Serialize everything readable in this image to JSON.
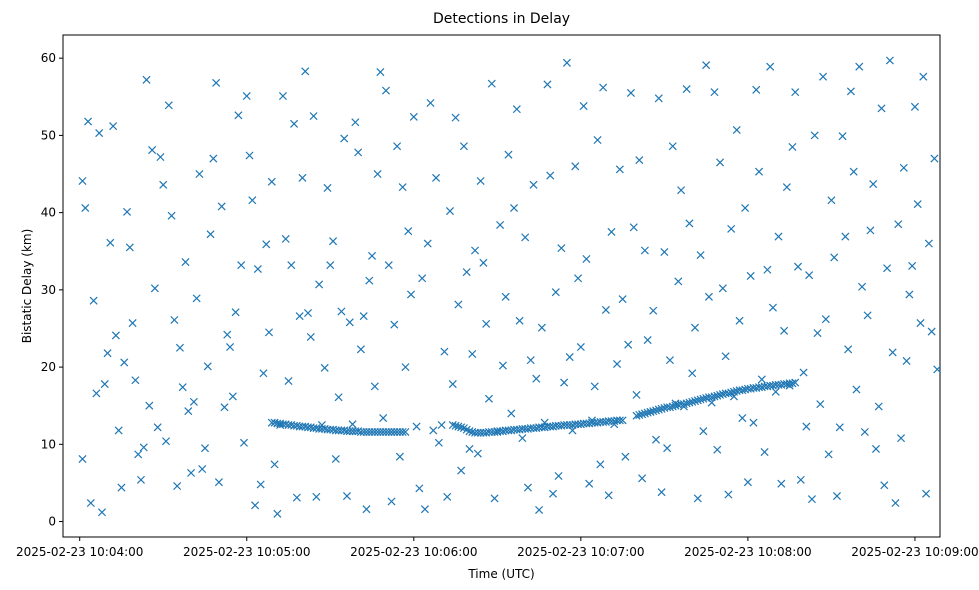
{
  "chart_data": {
    "type": "scatter",
    "title": "Detections in Delay",
    "xlabel": "Time (UTC)",
    "ylabel": "Bistatic Delay (km)",
    "x_type": "time",
    "xlim": [
      "2025-02-23 10:03:54",
      "2025-02-23 10:09:09"
    ],
    "ylim": [
      -2,
      63
    ],
    "marker": "x",
    "color": "#1f77b4",
    "grid": false,
    "xticks": [
      {
        "t": "2025-02-23 10:04:00",
        "label": "2025-02-23 10:04:00"
      },
      {
        "t": "2025-02-23 10:05:00",
        "label": "2025-02-23 10:05:00"
      },
      {
        "t": "2025-02-23 10:06:00",
        "label": "2025-02-23 10:06:00"
      },
      {
        "t": "2025-02-23 10:07:00",
        "label": "2025-02-23 10:07:00"
      },
      {
        "t": "2025-02-23 10:08:00",
        "label": "2025-02-23 10:08:00"
      },
      {
        "t": "2025-02-23 10:09:00",
        "label": "2025-02-23 10:09:00"
      }
    ],
    "yticks": [
      0,
      10,
      20,
      30,
      40,
      50,
      60
    ],
    "series": [
      {
        "x": [
          "10:04:01",
          "10:04:01",
          "10:04:02",
          "10:04:03",
          "10:04:04",
          "10:04:05",
          "10:04:06",
          "10:04:07",
          "10:04:08",
          "10:04:09",
          "10:04:10",
          "10:04:11",
          "10:04:12",
          "10:04:13",
          "10:04:14",
          "10:04:15",
          "10:04:16",
          "10:04:17",
          "10:04:18",
          "10:04:19",
          "10:04:20",
          "10:04:21",
          "10:04:22",
          "10:04:23",
          "10:04:24",
          "10:04:25",
          "10:04:26",
          "10:04:27",
          "10:04:28",
          "10:04:29",
          "10:04:30",
          "10:04:31",
          "10:04:32",
          "10:04:33",
          "10:04:34",
          "10:04:35",
          "10:04:36",
          "10:04:37",
          "10:04:38",
          "10:04:39",
          "10:04:40",
          "10:04:41",
          "10:04:42",
          "10:04:43",
          "10:04:44",
          "10:04:45",
          "10:04:46",
          "10:04:47",
          "10:04:48",
          "10:04:49",
          "10:04:50",
          "10:04:51",
          "10:04:52",
          "10:04:53",
          "10:04:54",
          "10:04:55",
          "10:04:56",
          "10:04:57",
          "10:04:58",
          "10:04:59",
          "10:05:00",
          "10:05:01",
          "10:05:02",
          "10:05:03",
          "10:05:04",
          "10:05:05",
          "10:05:06",
          "10:05:07",
          "10:05:08",
          "10:05:09",
          "10:05:10",
          "10:05:11",
          "10:05:12",
          "10:05:13",
          "10:05:14",
          "10:05:15",
          "10:05:16",
          "10:05:17",
          "10:05:18",
          "10:05:19",
          "10:05:20",
          "10:05:21",
          "10:05:22",
          "10:05:23",
          "10:05:24",
          "10:05:25",
          "10:05:26",
          "10:05:27",
          "10:05:28",
          "10:05:29",
          "10:05:30",
          "10:05:31",
          "10:05:32",
          "10:05:33",
          "10:05:34",
          "10:05:35",
          "10:05:36",
          "10:05:37",
          "10:05:38",
          "10:05:39",
          "10:05:40",
          "10:05:41",
          "10:05:42",
          "10:05:43",
          "10:05:44",
          "10:05:45",
          "10:05:46",
          "10:05:47",
          "10:05:48",
          "10:05:49",
          "10:05:50",
          "10:05:51",
          "10:05:52",
          "10:05:53",
          "10:05:54",
          "10:05:55",
          "10:05:56",
          "10:05:57",
          "10:05:58",
          "10:05:59",
          "10:06:00",
          "10:06:01",
          "10:06:02",
          "10:06:03",
          "10:06:04",
          "10:06:05",
          "10:06:06",
          "10:06:07",
          "10:06:08",
          "10:06:09",
          "10:06:10",
          "10:06:11",
          "10:06:12",
          "10:06:13",
          "10:06:14",
          "10:06:15",
          "10:06:16",
          "10:06:17",
          "10:06:18",
          "10:06:19",
          "10:06:20",
          "10:06:21",
          "10:06:22",
          "10:06:23",
          "10:06:24",
          "10:06:25",
          "10:06:26",
          "10:06:27",
          "10:06:28",
          "10:06:29",
          "10:06:30",
          "10:06:31",
          "10:06:32",
          "10:06:33",
          "10:06:34",
          "10:06:35",
          "10:06:36",
          "10:06:37",
          "10:06:38",
          "10:06:39",
          "10:06:40",
          "10:06:41",
          "10:06:42",
          "10:06:43",
          "10:06:44",
          "10:06:45",
          "10:06:46",
          "10:06:47",
          "10:06:48",
          "10:06:49",
          "10:06:50",
          "10:06:51",
          "10:06:52",
          "10:06:53",
          "10:06:54",
          "10:06:55",
          "10:06:56",
          "10:06:57",
          "10:06:58",
          "10:06:59",
          "10:07:00",
          "10:07:01",
          "10:07:02",
          "10:07:03",
          "10:07:04",
          "10:07:05",
          "10:07:06",
          "10:07:07",
          "10:07:08",
          "10:07:09",
          "10:07:10",
          "10:07:11",
          "10:07:12",
          "10:07:13",
          "10:07:14",
          "10:07:15",
          "10:07:16",
          "10:07:17",
          "10:07:18",
          "10:07:19",
          "10:07:20",
          "10:07:21",
          "10:07:22",
          "10:07:23",
          "10:07:24",
          "10:07:25",
          "10:07:26",
          "10:07:27",
          "10:07:28",
          "10:07:29",
          "10:07:30",
          "10:07:31",
          "10:07:32",
          "10:07:33",
          "10:07:34",
          "10:07:35",
          "10:07:36",
          "10:07:37",
          "10:07:38",
          "10:07:39",
          "10:07:40",
          "10:07:41",
          "10:07:42",
          "10:07:43",
          "10:07:44",
          "10:07:45",
          "10:07:46",
          "10:07:47",
          "10:07:48",
          "10:07:49",
          "10:07:50",
          "10:07:51",
          "10:07:52",
          "10:07:53",
          "10:07:54",
          "10:07:55",
          "10:07:56",
          "10:07:57",
          "10:07:58",
          "10:07:59",
          "10:08:00",
          "10:08:01",
          "10:08:02",
          "10:08:03",
          "10:08:04",
          "10:08:05",
          "10:08:06",
          "10:08:07",
          "10:08:08",
          "10:08:09",
          "10:08:10",
          "10:08:11",
          "10:08:12",
          "10:08:13",
          "10:08:14",
          "10:08:15",
          "10:08:16",
          "10:08:17",
          "10:08:18",
          "10:08:19",
          "10:08:20",
          "10:08:21",
          "10:08:22",
          "10:08:23",
          "10:08:24",
          "10:08:25",
          "10:08:26",
          "10:08:27",
          "10:08:28",
          "10:08:29",
          "10:08:30",
          "10:08:31",
          "10:08:32",
          "10:08:33",
          "10:08:34",
          "10:08:35",
          "10:08:36",
          "10:08:37",
          "10:08:38",
          "10:08:39",
          "10:08:40",
          "10:08:41",
          "10:08:42",
          "10:08:43",
          "10:08:44",
          "10:08:45",
          "10:08:46",
          "10:08:47",
          "10:08:48",
          "10:08:49",
          "10:08:50",
          "10:08:51",
          "10:08:52",
          "10:08:53",
          "10:08:54",
          "10:08:55",
          "10:08:56",
          "10:08:57",
          "10:08:58",
          "10:08:59",
          "10:09:00",
          "10:09:01",
          "10:09:02",
          "10:09:03",
          "10:09:04",
          "10:09:05",
          "10:09:06",
          "10:09:07",
          "10:09:08"
        ],
        "y": [
          44.1,
          8.1,
          40.6,
          51.8,
          2.4,
          28.6,
          16.6,
          50.3,
          1.2,
          17.8,
          21.8,
          36.1,
          51.2,
          24.1,
          11.8,
          4.4,
          20.6,
          40.1,
          35.5,
          25.7,
          18.3,
          8.7,
          5.4,
          9.6,
          57.2,
          15.0,
          48.1,
          30.2,
          12.2,
          47.2,
          43.6,
          10.4,
          53.9,
          39.6,
          26.1,
          4.6,
          22.5,
          17.4,
          33.6,
          14.3,
          6.3,
          15.5,
          28.9,
          45.0,
          6.8,
          9.5,
          20.1,
          37.2,
          47.0,
          56.8,
          5.1,
          40.8,
          14.8,
          24.2,
          22.6,
          16.2,
          27.1,
          52.6,
          33.2,
          10.2,
          55.1,
          47.4,
          41.6,
          2.1,
          32.7,
          4.8,
          19.2,
          35.9,
          24.5,
          44.0,
          7.4,
          1.0,
          12.5,
          55.1,
          36.6,
          18.2,
          33.2,
          51.5,
          3.1,
          26.6,
          44.5,
          58.3,
          27.0,
          23.9,
          52.5,
          3.2,
          30.7,
          12.5,
          19.9,
          43.2,
          33.2,
          36.3,
          8.1,
          16.1,
          27.2,
          49.6,
          3.3,
          25.8,
          12.6,
          51.7,
          47.8,
          22.3,
          26.6,
          1.6,
          31.2,
          34.4,
          17.5,
          45.0,
          58.2,
          13.4,
          55.8,
          33.2,
          2.6,
          25.5,
          48.6,
          8.4,
          43.3,
          20.0,
          37.6,
          29.4,
          52.4,
          12.3,
          4.3,
          31.5,
          1.6,
          36.0,
          54.2,
          11.8,
          44.5,
          10.2,
          12.5,
          22.0,
          3.2,
          40.2,
          17.8,
          52.3,
          28.1,
          6.6,
          48.6,
          32.3,
          9.4,
          21.7,
          35.1,
          8.8,
          44.1,
          33.5,
          25.6,
          15.9,
          56.7,
          3.0,
          11.6,
          38.4,
          20.2,
          29.1,
          47.5,
          14.0,
          40.6,
          53.4,
          26.0,
          10.8,
          36.8,
          4.4,
          20.9,
          43.6,
          18.5,
          1.5,
          25.1,
          12.8,
          56.6,
          44.8,
          3.6,
          29.7,
          5.9,
          35.4,
          18.0,
          59.4,
          21.3,
          11.8,
          46.0,
          31.5,
          22.6,
          53.8,
          34.0,
          4.9,
          13.1,
          17.5,
          49.4,
          7.4,
          56.2,
          27.4,
          3.4,
          37.5,
          12.6,
          20.4,
          45.6,
          28.8,
          8.4,
          22.9,
          55.5,
          38.1,
          16.4,
          46.8,
          5.6,
          35.1,
          23.5,
          14.2,
          27.3,
          10.6,
          54.8,
          3.8,
          34.9,
          9.5,
          20.9,
          48.6,
          15.3,
          31.1,
          42.9,
          14.9,
          56.0,
          38.6,
          19.2,
          25.1,
          3.0,
          34.5,
          11.7,
          59.1,
          29.1,
          15.4,
          55.6,
          9.3,
          46.5,
          30.2,
          21.4,
          3.5,
          37.9,
          16.2,
          50.7,
          26.0,
          13.4,
          40.6,
          5.1,
          31.8,
          12.8,
          55.9,
          45.3,
          18.4,
          9.0,
          32.6,
          58.9,
          27.7,
          16.8,
          36.9,
          4.9,
          24.7,
          43.3,
          17.6,
          48.5,
          55.6,
          33.0,
          5.4,
          19.3,
          12.3,
          31.9,
          2.9,
          50.0,
          24.4,
          15.2,
          57.6,
          26.2,
          8.7,
          41.6,
          34.2,
          3.3,
          12.2,
          49.9,
          36.9,
          22.3,
          55.7,
          45.3,
          17.1,
          58.9,
          30.4,
          11.6,
          26.7,
          37.7,
          43.7,
          9.4,
          14.9,
          53.5,
          4.7,
          32.8,
          59.7,
          21.9,
          2.4,
          38.5,
          10.8,
          45.8,
          20.8,
          29.4,
          33.1,
          53.7,
          41.1,
          25.7,
          57.6,
          3.6,
          36.0,
          24.6,
          47.0,
          19.7
        ]
      },
      {
        "x": [
          "10:05:09",
          "10:05:10",
          "10:05:11",
          "10:05:12",
          "10:05:13",
          "10:05:14",
          "10:05:15",
          "10:05:16",
          "10:05:17",
          "10:05:18",
          "10:05:19",
          "10:05:20",
          "10:05:21",
          "10:05:22",
          "10:05:23",
          "10:05:24",
          "10:05:25",
          "10:05:26",
          "10:05:27",
          "10:05:28",
          "10:05:29",
          "10:05:30",
          "10:05:31",
          "10:05:32",
          "10:05:33",
          "10:05:34",
          "10:05:35",
          "10:05:36",
          "10:05:37",
          "10:05:38",
          "10:05:39",
          "10:05:40",
          "10:05:41",
          "10:05:42",
          "10:05:43",
          "10:05:44",
          "10:05:45",
          "10:05:46",
          "10:05:47",
          "10:05:48",
          "10:05:49",
          "10:05:50",
          "10:05:51",
          "10:05:52",
          "10:05:53",
          "10:05:54",
          "10:05:55",
          "10:05:56",
          "10:05:57"
        ],
        "y": [
          12.8,
          12.8,
          12.7,
          12.7,
          12.6,
          12.6,
          12.5,
          12.5,
          12.4,
          12.4,
          12.3,
          12.3,
          12.3,
          12.2,
          12.2,
          12.1,
          12.1,
          12.0,
          12.0,
          12.0,
          11.9,
          11.9,
          11.9,
          11.8,
          11.8,
          11.8,
          11.8,
          11.7,
          11.7,
          11.7,
          11.7,
          11.7,
          11.6,
          11.6,
          11.6,
          11.6,
          11.6,
          11.6,
          11.6,
          11.6,
          11.6,
          11.6,
          11.6,
          11.6,
          11.6,
          11.6,
          11.6,
          11.6,
          11.6
        ]
      },
      {
        "x": [
          "10:06:14",
          "10:06:15",
          "10:06:16",
          "10:06:17",
          "10:06:18",
          "10:06:19",
          "10:06:20",
          "10:06:21",
          "10:06:22",
          "10:06:23",
          "10:06:24",
          "10:06:25",
          "10:06:26",
          "10:06:27",
          "10:06:28",
          "10:06:29",
          "10:06:30",
          "10:06:31",
          "10:06:32",
          "10:06:33",
          "10:06:34",
          "10:06:35",
          "10:06:36",
          "10:06:37",
          "10:06:38",
          "10:06:39",
          "10:06:40",
          "10:06:41",
          "10:06:42",
          "10:06:43",
          "10:06:44",
          "10:06:45",
          "10:06:46",
          "10:06:47",
          "10:06:48",
          "10:06:49",
          "10:06:50",
          "10:06:51",
          "10:06:52",
          "10:06:53",
          "10:06:54",
          "10:06:55",
          "10:06:56",
          "10:06:57",
          "10:06:58",
          "10:06:59",
          "10:07:00",
          "10:07:01",
          "10:07:02",
          "10:07:03",
          "10:07:04",
          "10:07:05",
          "10:07:06",
          "10:07:07",
          "10:07:08",
          "10:07:09",
          "10:07:10",
          "10:07:11",
          "10:07:12",
          "10:07:13",
          "10:07:14",
          "10:07:15"
        ],
        "y": [
          12.5,
          12.4,
          12.3,
          12.2,
          12.1,
          11.9,
          11.7,
          11.6,
          11.5,
          11.5,
          11.5,
          11.5,
          11.5,
          11.6,
          11.6,
          11.6,
          11.7,
          11.7,
          11.7,
          11.8,
          11.8,
          11.8,
          11.9,
          11.9,
          11.9,
          12.0,
          12.0,
          12.0,
          12.1,
          12.1,
          12.1,
          12.2,
          12.2,
          12.2,
          12.3,
          12.3,
          12.3,
          12.4,
          12.4,
          12.4,
          12.5,
          12.5,
          12.5,
          12.5,
          12.6,
          12.6,
          12.6,
          12.7,
          12.7,
          12.7,
          12.8,
          12.8,
          12.8,
          12.9,
          12.9,
          12.9,
          13.0,
          13.0,
          13.0,
          13.1,
          13.1,
          13.1
        ]
      },
      {
        "x": [
          "10:07:20",
          "10:07:21",
          "10:07:22",
          "10:07:23",
          "10:07:24",
          "10:07:25",
          "10:07:26",
          "10:07:27",
          "10:07:28",
          "10:07:29",
          "10:07:30",
          "10:07:31",
          "10:07:32",
          "10:07:33",
          "10:07:34",
          "10:07:35",
          "10:07:36",
          "10:07:37",
          "10:07:38",
          "10:07:39",
          "10:07:40",
          "10:07:41",
          "10:07:42",
          "10:07:43",
          "10:07:44",
          "10:07:45",
          "10:07:46",
          "10:07:47",
          "10:07:48",
          "10:07:49",
          "10:07:50",
          "10:07:51",
          "10:07:52",
          "10:07:53",
          "10:07:54",
          "10:07:55",
          "10:07:56",
          "10:07:57",
          "10:07:58",
          "10:07:59",
          "10:08:00",
          "10:08:01",
          "10:08:02",
          "10:08:03",
          "10:08:04",
          "10:08:05",
          "10:08:06",
          "10:08:07",
          "10:08:08",
          "10:08:09",
          "10:08:10",
          "10:08:11",
          "10:08:12",
          "10:08:13",
          "10:08:14",
          "10:08:15",
          "10:08:16",
          "10:08:17"
        ],
        "y": [
          13.7,
          13.8,
          13.9,
          14.0,
          14.1,
          14.2,
          14.3,
          14.4,
          14.5,
          14.6,
          14.7,
          14.8,
          14.8,
          14.9,
          15.0,
          15.1,
          15.2,
          15.2,
          15.3,
          15.4,
          15.5,
          15.6,
          15.7,
          15.8,
          15.9,
          16.0,
          16.1,
          16.1,
          16.2,
          16.3,
          16.4,
          16.5,
          16.6,
          16.6,
          16.7,
          16.8,
          16.9,
          17.0,
          17.0,
          17.1,
          17.2,
          17.2,
          17.3,
          17.3,
          17.4,
          17.4,
          17.5,
          17.5,
          17.6,
          17.6,
          17.7,
          17.7,
          17.7,
          17.8,
          17.8,
          17.9,
          17.9,
          18.0
        ]
      }
    ]
  }
}
